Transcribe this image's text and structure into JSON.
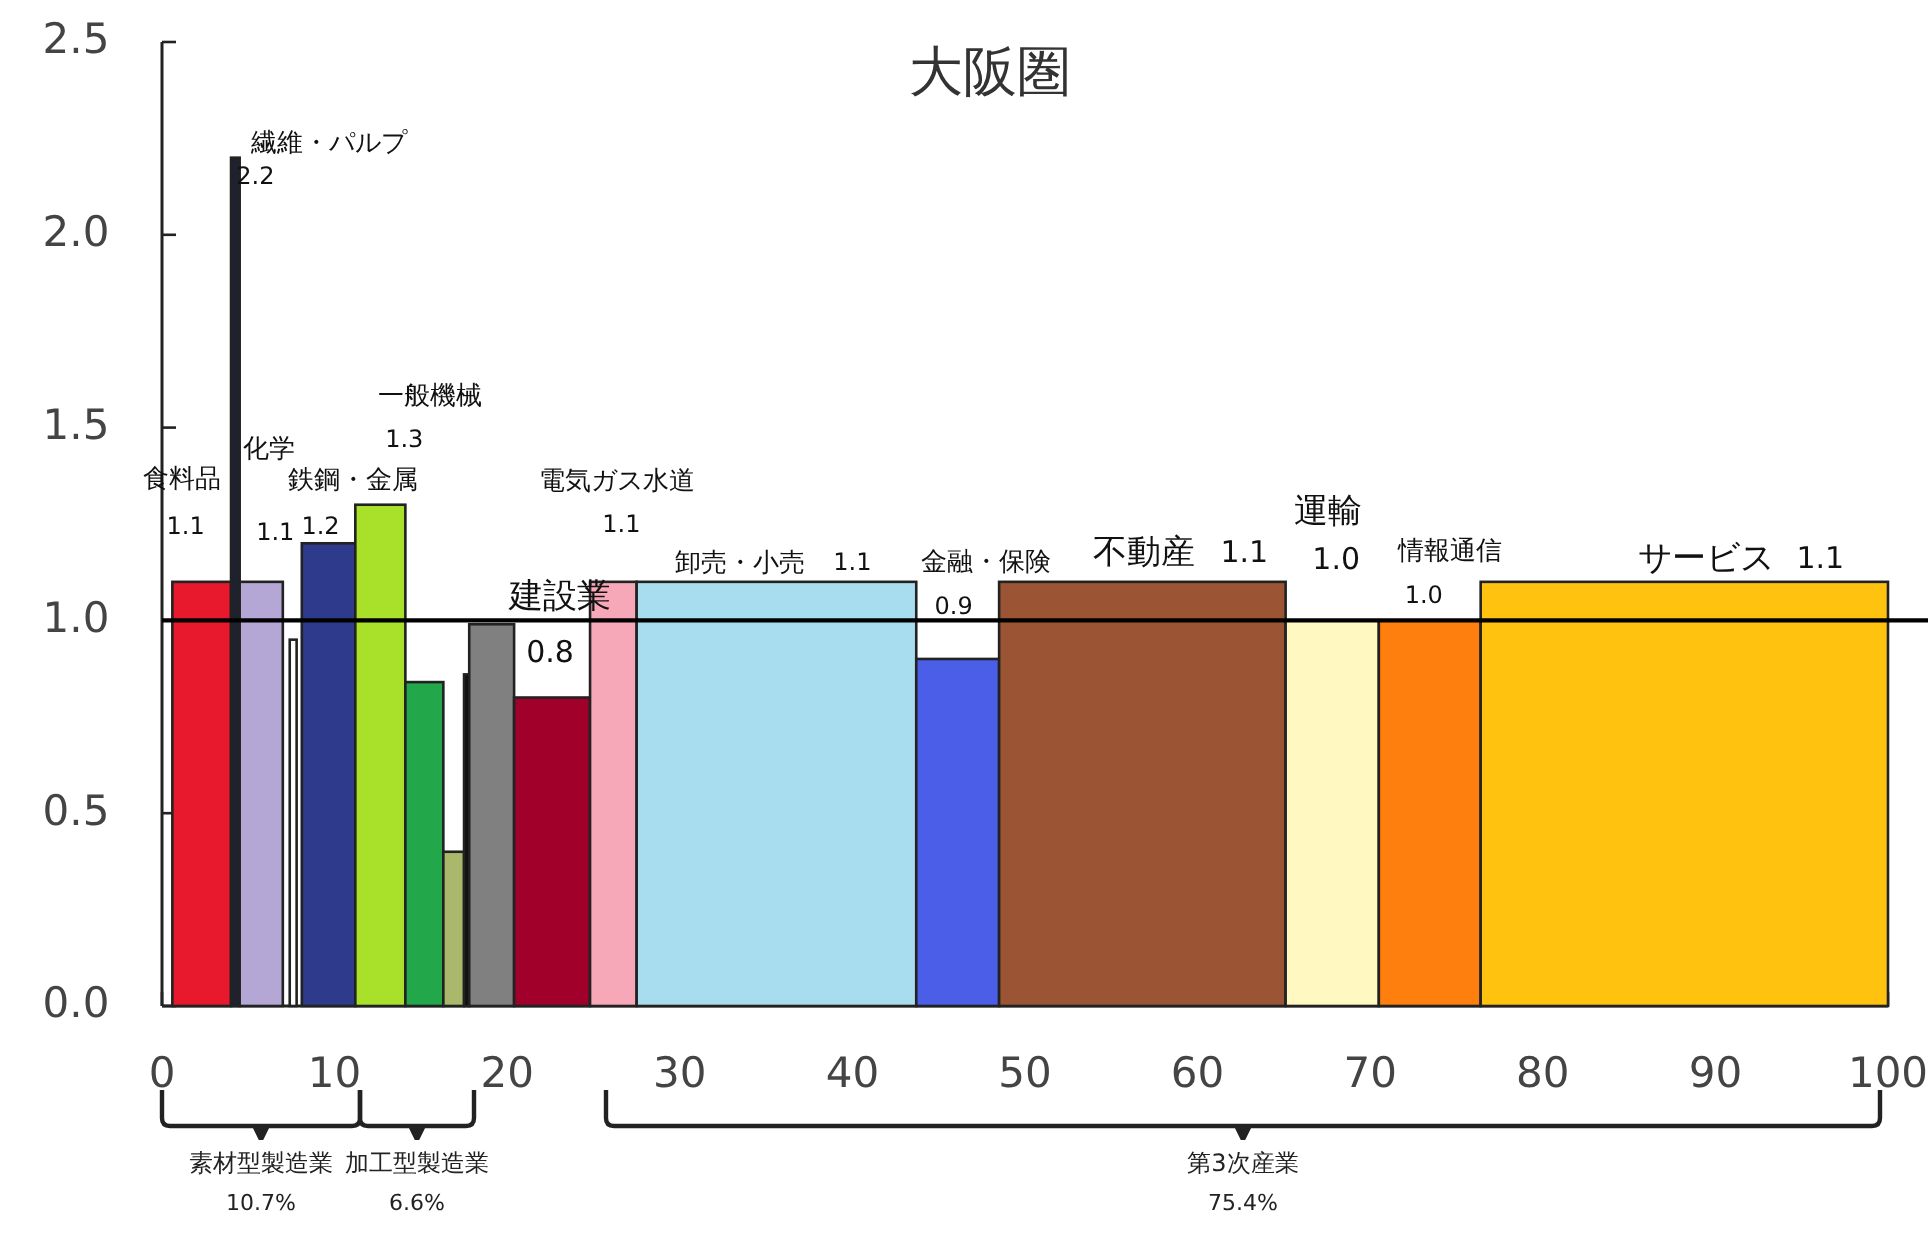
{
  "chart_data": {
    "type": "histogram",
    "title": "大阪圏",
    "bins": [
      0.6,
      4.0,
      4.5,
      7.0,
      7.4,
      7.8,
      8.1,
      11.2,
      14.1,
      16.3,
      17.5,
      17.8,
      20.4,
      24.8,
      27.5,
      43.7,
      48.5,
      65.1,
      70.5,
      76.4,
      100
    ],
    "values": [
      1.1,
      2.2,
      1.1,
      null,
      0.95,
      null,
      1.2,
      1.3,
      0.84,
      0.4,
      0.86,
      0.99,
      0.8,
      1.1,
      1.1,
      0.9,
      1.1,
      1.0,
      1.0,
      1.1
    ],
    "colors": [
      "#e8192c",
      "#1e2230",
      "#b4a7d6",
      null,
      "#ffffff",
      null,
      "#2e3a8c",
      "#a8e02a",
      "#22a84a",
      "#aab86c",
      "#111111",
      "#808080",
      "#a0002a",
      "#f7a8b8",
      "#a8dcef",
      "#4a5ee8",
      "#9b5534",
      "#fff8c0",
      "#ff7f0e",
      "#ffc20e"
    ],
    "value_labels": [
      "1.1",
      "2.2",
      "1.1",
      null,
      null,
      null,
      "1.2",
      "1.3",
      null,
      null,
      null,
      null,
      "0.8",
      "1.1",
      "1.1",
      "0.9",
      "1.1",
      "1.0",
      "1.0",
      "1.1"
    ],
    "xlim": [
      0,
      100
    ],
    "ylim": [
      0,
      2.5
    ],
    "xticks": [
      0,
      10,
      20,
      30,
      40,
      50,
      60,
      70,
      80,
      90,
      100
    ],
    "yticks": [
      {
        "value": 0,
        "label": "0.0"
      },
      {
        "value": 0.5,
        "label": "0.5"
      },
      {
        "value": 1,
        "label": "1.0"
      },
      {
        "value": 1.5,
        "label": "1.5"
      },
      {
        "value": 2,
        "label": "2.0"
      },
      {
        "value": 2.5,
        "label": "2.5"
      }
    ],
    "ref_lines": [
      {
        "axis": "y",
        "value": 1.0,
        "color": "#000000"
      }
    ],
    "annotations": [
      "食料品",
      "繊維・パルプ",
      "化学",
      "鉄鋼・金属",
      "一般機械",
      "建設業",
      "電気ガス水道",
      "卸売・小売",
      "金融・保険",
      "不動産",
      "運輸",
      "情報通信",
      "サービス",
      "素材型製造業\n10.7%",
      "加工型製造業\n6.6%",
      "第3次産業\n75.4%"
    ]
  }
}
